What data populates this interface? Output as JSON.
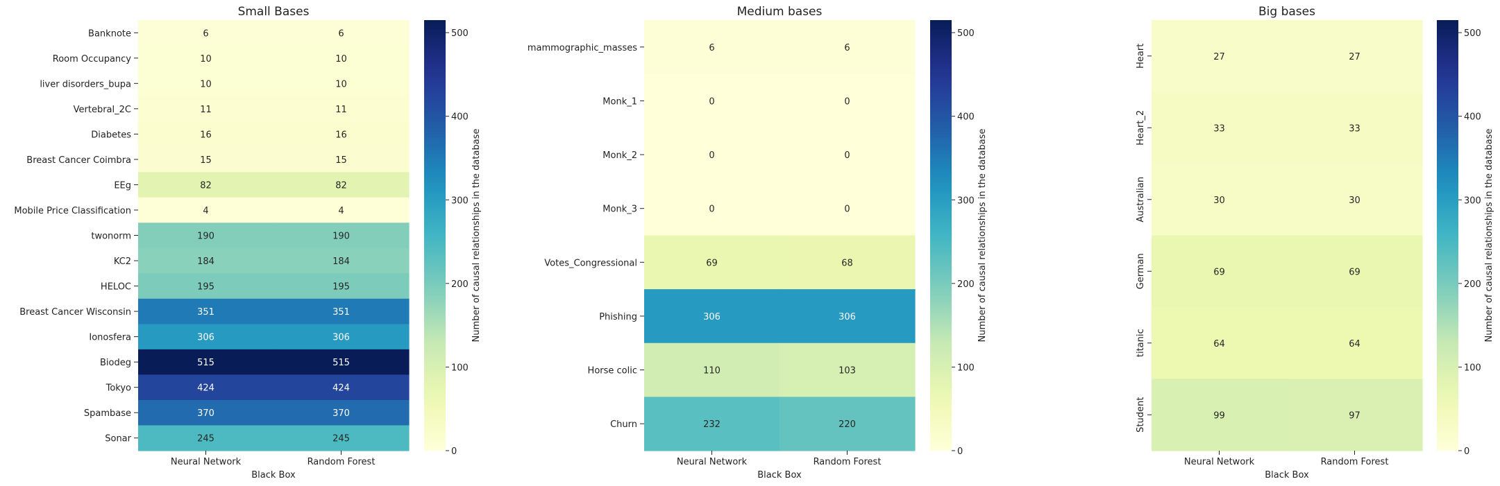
{
  "colorbar": {
    "label": "Number of causal relationships in the database",
    "ticks": [
      0,
      100,
      200,
      300,
      400,
      500
    ],
    "vmin": 0,
    "vmax": 515,
    "colormap": "YlGnBu"
  },
  "chart_data": [
    {
      "type": "heatmap",
      "title": "Small Bases",
      "xlabel": "Black Box",
      "ylabel": "",
      "columns": [
        "Neural Network",
        "Random Forest"
      ],
      "rows": [
        "Banknote",
        "Room Occupancy",
        "liver disorders_bupa",
        "Vertebral_2C",
        "Diabetes",
        "Breast Cancer Coimbra",
        "EEg",
        "Mobile Price Classification",
        "twonorm",
        "KC2",
        "HELOC",
        "Breast Cancer Wisconsin",
        "Ionosfera",
        "Biodeg",
        "Tokyo",
        "Spambase",
        "Sonar"
      ],
      "values": [
        [
          6,
          6
        ],
        [
          10,
          10
        ],
        [
          10,
          10
        ],
        [
          11,
          11
        ],
        [
          16,
          16
        ],
        [
          15,
          15
        ],
        [
          82,
          82
        ],
        [
          4,
          4
        ],
        [
          190,
          190
        ],
        [
          184,
          184
        ],
        [
          195,
          195
        ],
        [
          351,
          351
        ],
        [
          306,
          306
        ],
        [
          515,
          515
        ],
        [
          424,
          424
        ],
        [
          370,
          370
        ],
        [
          245,
          245
        ]
      ],
      "ylabels_rotated": false
    },
    {
      "type": "heatmap",
      "title": "Medium bases",
      "xlabel": "Black Box",
      "ylabel": "",
      "columns": [
        "Neural Network",
        "Random Forest"
      ],
      "rows": [
        "mammographic_masses",
        "Monk_1",
        "Monk_2",
        "Monk_3",
        "Votes_Congressional",
        "Phishing",
        "Horse colic",
        "Churn"
      ],
      "values": [
        [
          6,
          6
        ],
        [
          0,
          0
        ],
        [
          0,
          0
        ],
        [
          0,
          0
        ],
        [
          69,
          68
        ],
        [
          306,
          306
        ],
        [
          110,
          103
        ],
        [
          232,
          220
        ]
      ],
      "ylabels_rotated": false
    },
    {
      "type": "heatmap",
      "title": "Big bases",
      "xlabel": "Black Box",
      "ylabel": "",
      "columns": [
        "Neural Network",
        "Random Forest"
      ],
      "rows": [
        "Heart",
        "Heart_2",
        "Australian",
        "German",
        "titanic",
        "Student"
      ],
      "values": [
        [
          27,
          27
        ],
        [
          33,
          33
        ],
        [
          30,
          30
        ],
        [
          69,
          69
        ],
        [
          64,
          64
        ],
        [
          99,
          97
        ]
      ],
      "ylabels_rotated": true
    }
  ]
}
